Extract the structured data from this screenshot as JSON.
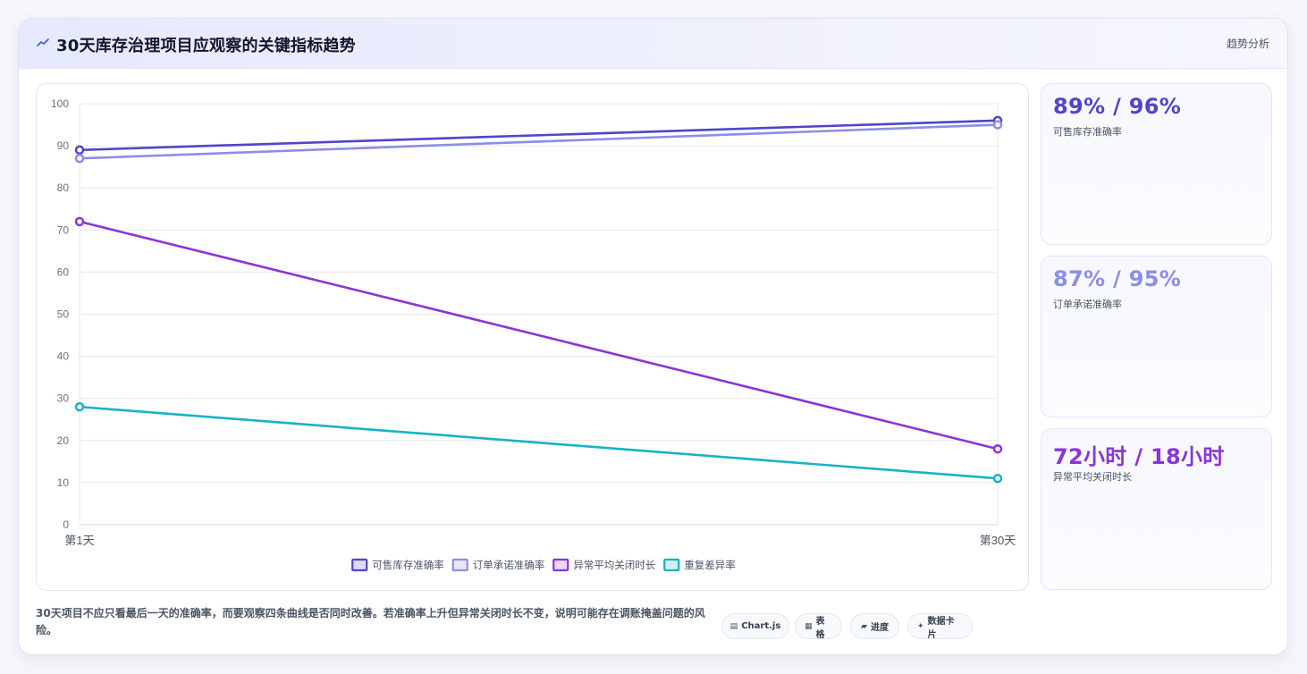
{
  "header": {
    "title": "30天库存治理项目应观察的关键指标趋势",
    "tag": "趋势分析",
    "icon": "trend-line-icon"
  },
  "kpis": [
    {
      "value": "89% / 96%",
      "label": "可售库存准确率",
      "color": "#4f46c9"
    },
    {
      "value": "87% / 95%",
      "label": "订单承诺准确率",
      "color": "#8b8ee8"
    },
    {
      "value": "72小时 / 18小时",
      "label": "异常平均关闭时长",
      "color": "#8b35d6"
    }
  ],
  "footer": {
    "note": "30天项目不应只看最后一天的准确率，而要观察四条曲线是否同时改善。若准确率上升但异常关闭时长不变，说明可能存在调账掩盖问题的风险。",
    "pills": [
      {
        "icon": "chart-icon",
        "glyph": "▤",
        "label": "Chart.js"
      },
      {
        "icon": "table-icon",
        "glyph": "▦",
        "label": "表格"
      },
      {
        "icon": "progress-icon",
        "glyph": "▰",
        "label": "进度"
      },
      {
        "icon": "sparkle-icon",
        "glyph": "✦",
        "label": "数据卡片"
      }
    ]
  },
  "chart_data": {
    "type": "line",
    "categories": [
      "第1天",
      "第30天"
    ],
    "ylim": [
      0,
      100
    ],
    "yticks": [
      0,
      10,
      20,
      30,
      40,
      50,
      60,
      70,
      80,
      90,
      100
    ],
    "grid": true,
    "legend_position": "bottom",
    "title": "",
    "xlabel": "",
    "ylabel": "",
    "series": [
      {
        "name": "可售库存准确率",
        "values": [
          89,
          96
        ],
        "color": "#4f46c9"
      },
      {
        "name": "订单承诺准确率",
        "values": [
          87,
          95
        ],
        "color": "#8b8ee8"
      },
      {
        "name": "异常平均关闭时长",
        "values": [
          72,
          18
        ],
        "color": "#8b35d6"
      },
      {
        "name": "重复差异率",
        "values": [
          28,
          11
        ],
        "color": "#17b3c6"
      }
    ]
  }
}
